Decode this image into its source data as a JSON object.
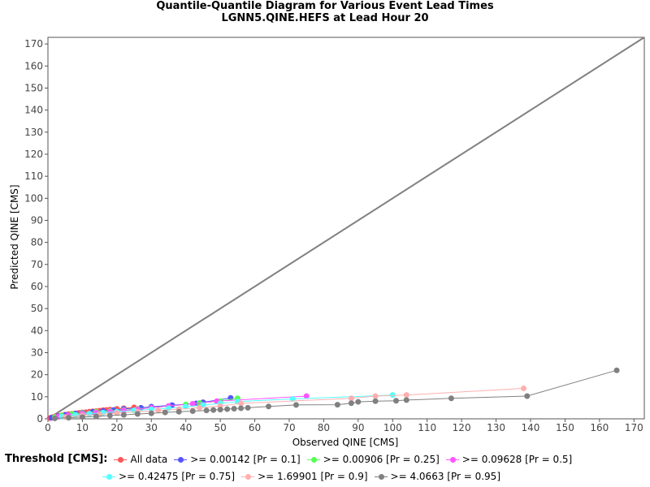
{
  "chart_data": {
    "type": "scatter",
    "title": "Quantile-Quantile Diagram for Various Event Lead Times",
    "subtitle": "LGNN5.QINE.HEFS at Lead Hour 20",
    "xlabel": "Observed QINE [CMS]",
    "ylabel": "Predicted QINE [CMS]",
    "xlim": [
      0,
      173
    ],
    "ylim": [
      0,
      173
    ],
    "xticks": [
      "0",
      "10",
      "20",
      "30",
      "40",
      "50",
      "60",
      "70",
      "80",
      "90",
      "100",
      "110",
      "120",
      "130",
      "140",
      "150",
      "160",
      "170"
    ],
    "yticks": [
      "0",
      "10",
      "20",
      "30",
      "40",
      "50",
      "60",
      "70",
      "80",
      "90",
      "100",
      "110",
      "120",
      "130",
      "140",
      "150",
      "160",
      "170"
    ],
    "grid": true,
    "legend_title": "Threshold [CMS]:",
    "legend_placement": "bottom",
    "diagonal": {
      "color": "#808080",
      "x": [
        0,
        173
      ],
      "y": [
        0,
        173
      ]
    },
    "series": [
      {
        "name": "All data",
        "color": "#ff5555",
        "x": [
          0.5,
          1,
          1.5,
          2,
          3,
          4,
          5,
          6,
          7,
          8,
          9,
          10,
          11,
          12,
          13,
          14,
          15,
          16,
          17,
          18,
          20,
          22,
          25
        ],
        "y": [
          0.3,
          0.6,
          0.8,
          1.0,
          1.3,
          1.6,
          1.9,
          2.1,
          2.3,
          2.5,
          2.7,
          2.9,
          3.0,
          3.2,
          3.4,
          3.5,
          3.7,
          3.9,
          4.0,
          4.2,
          4.5,
          4.8,
          5.2
        ]
      },
      {
        "name": ">= 0.00142 [Pr = 0.1]",
        "color": "#5555ff",
        "x": [
          1,
          3,
          5,
          8,
          10,
          13,
          16,
          19,
          22,
          27,
          30,
          36,
          43,
          45,
          53
        ],
        "y": [
          0.5,
          1.2,
          1.8,
          2.4,
          2.8,
          3.2,
          3.6,
          4.0,
          4.5,
          5.0,
          5.5,
          6.2,
          7.0,
          7.5,
          9.5
        ]
      },
      {
        "name": ">= 0.00906 [Pr = 0.25]",
        "color": "#55ff55",
        "x": [
          2,
          4,
          7,
          10,
          14,
          18,
          22,
          26,
          30,
          35,
          40,
          44,
          50,
          55
        ],
        "y": [
          0.8,
          1.5,
          2.2,
          2.6,
          3.2,
          3.6,
          4.0,
          4.5,
          5.0,
          5.8,
          6.5,
          7.2,
          8.0,
          9.3
        ]
      },
      {
        "name": ">= 0.09628 [Pr = 0.5]",
        "color": "#ff55ff",
        "x": [
          3,
          6,
          10,
          14,
          18,
          22,
          26,
          30,
          35,
          42,
          49,
          75
        ],
        "y": [
          0.9,
          1.6,
          2.3,
          2.8,
          3.3,
          3.8,
          4.3,
          5.0,
          5.8,
          6.8,
          8.0,
          10.3
        ]
      },
      {
        "name": ">= 0.42475 [Pr = 0.75]",
        "color": "#55ffff",
        "x": [
          4,
          8,
          12,
          16,
          20,
          25,
          30,
          35,
          40,
          45,
          50,
          55,
          71,
          100
        ],
        "y": [
          1.0,
          1.8,
          2.3,
          2.8,
          3.2,
          3.8,
          4.3,
          4.8,
          5.5,
          6.2,
          7.0,
          7.8,
          9.0,
          10.8
        ]
      },
      {
        "name": ">= 1.69901 [Pr = 0.9]",
        "color": "#ffafaf",
        "x": [
          5,
          10,
          15,
          20,
          26,
          32,
          38,
          44,
          50,
          56,
          88,
          95,
          104,
          138
        ],
        "y": [
          0.8,
          1.5,
          2.0,
          2.6,
          3.2,
          3.8,
          4.4,
          5.0,
          5.8,
          7.0,
          9.3,
          10.3,
          10.8,
          13.8
        ]
      },
      {
        "name": ">= 4.0663 [Pr = 0.95]",
        "color": "#808080",
        "x": [
          2,
          6,
          10,
          14,
          18,
          22,
          26,
          30,
          34,
          38,
          42,
          46,
          48,
          50,
          52,
          54,
          56,
          58,
          64,
          72,
          84,
          88,
          90,
          95,
          101,
          104,
          117,
          139,
          165
        ],
        "y": [
          0.2,
          0.5,
          0.8,
          1.1,
          1.5,
          1.8,
          2.2,
          2.5,
          2.9,
          3.2,
          3.5,
          3.8,
          4.0,
          4.2,
          4.4,
          4.6,
          4.8,
          5.0,
          5.6,
          6.3,
          6.4,
          7.1,
          7.7,
          8.0,
          8.2,
          8.5,
          9.3,
          10.3,
          22
        ]
      }
    ]
  }
}
